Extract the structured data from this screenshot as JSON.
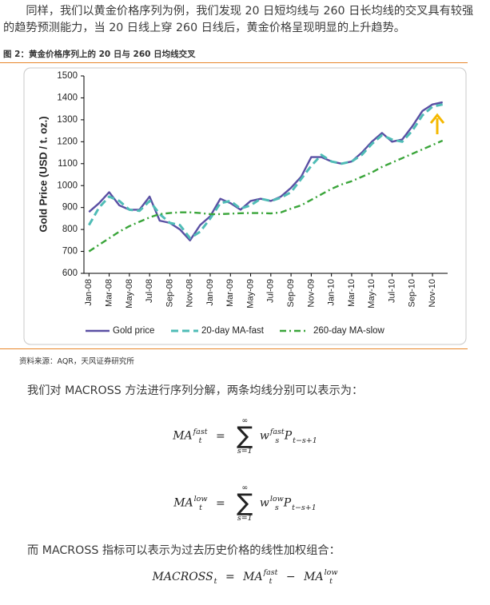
{
  "intro": "同样，我们以黄金价格序列为例，我们发现 20 日短均线与 260 日长均线的交叉具有较强的趋势预测能力，当 20 日线上穿 260 日线后，黄金价格呈现明显的上升趋势。",
  "figure_caption": "图 2：黄金价格序列上的 20 日与 260 日均线交叉",
  "chart_data": {
    "type": "line",
    "y_label": "Gold Price (USD / t. oz.)",
    "categories": [
      "Jan-08",
      null,
      "Mar-08",
      null,
      "May-08",
      null,
      "Jul-08",
      null,
      "Sep-08",
      null,
      "Nov-08",
      null,
      "Jan-09",
      null,
      "Mar-09",
      null,
      "May-09",
      null,
      "Jul-09",
      null,
      "Sep-09",
      null,
      "Nov-09",
      null,
      "Jan-10",
      null,
      "Mar-10",
      null,
      "May-10",
      null,
      "Jul-10",
      null,
      "Sep-10",
      null,
      "Nov-10",
      null
    ],
    "series": [
      {
        "name": "Gold price",
        "color": "#5a4fa3",
        "style": "solid",
        "values": [
          880,
          920,
          970,
          910,
          890,
          890,
          950,
          840,
          830,
          800,
          750,
          820,
          860,
          940,
          920,
          890,
          930,
          940,
          930,
          950,
          990,
          1040,
          1130,
          1130,
          1110,
          1100,
          1110,
          1150,
          1200,
          1240,
          1200,
          1210,
          1270,
          1340,
          1370,
          1380
        ]
      },
      {
        "name": "20-day MA-fast",
        "color": "#4fbcb6",
        "style": "dashed",
        "values": [
          820,
          900,
          950,
          930,
          890,
          885,
          930,
          870,
          830,
          820,
          760,
          790,
          850,
          920,
          930,
          895,
          910,
          940,
          930,
          945,
          970,
          1030,
          1090,
          1140,
          1110,
          1100,
          1110,
          1140,
          1190,
          1230,
          1210,
          1200,
          1250,
          1320,
          1360,
          1370
        ]
      },
      {
        "name": "260-day MA-slow",
        "color": "#3aa53a",
        "style": "dashdot",
        "values": [
          700,
          730,
          760,
          790,
          815,
          835,
          855,
          870,
          875,
          878,
          878,
          875,
          870,
          870,
          872,
          874,
          875,
          875,
          873,
          878,
          895,
          910,
          935,
          960,
          985,
          1005,
          1020,
          1040,
          1060,
          1085,
          1105,
          1125,
          1145,
          1165,
          1185,
          1205
        ]
      }
    ],
    "ylim": [
      600,
      1500
    ],
    "yticks": [
      600,
      700,
      800,
      900,
      1000,
      1100,
      1200,
      1300,
      1400,
      1500
    ],
    "grid": false,
    "legend": "bottom"
  },
  "source": "资料来源：AQR，天风证券研究所",
  "para2": "我们对 MACROSS 方法进行序列分解，两条均线分别可以表示为：",
  "formulas": [
    {
      "lhs": "MA",
      "lhs_sub": "t",
      "lhs_sup": "fast",
      "eq": "=",
      "sum": "∑",
      "sum_top": "∞",
      "sum_bottom": "s=1",
      "w": "w",
      "w_sub": "s",
      "w_sup": "fast",
      "p": "P",
      "p_sub": "t−s+1"
    },
    {
      "lhs": "MA",
      "lhs_sub": "t",
      "lhs_sup": "low",
      "eq": "=",
      "sum": "∑",
      "sum_top": "∞",
      "sum_bottom": "s=1",
      "w": "w",
      "w_sub": "s",
      "w_sup": "low",
      "p": "P",
      "p_sub": "t−s+1"
    }
  ],
  "para3": "而 MACROSS 指标可以表示为过去历史价格的线性加权组合：",
  "formula3": {
    "lhs": "MACROSS",
    "lhs_sub": "t",
    "eq": "=",
    "a": "MA",
    "a_sub": "t",
    "a_sup": "fast",
    "minus": "−",
    "b": "MA",
    "b_sub": "t",
    "b_sup": "low"
  }
}
